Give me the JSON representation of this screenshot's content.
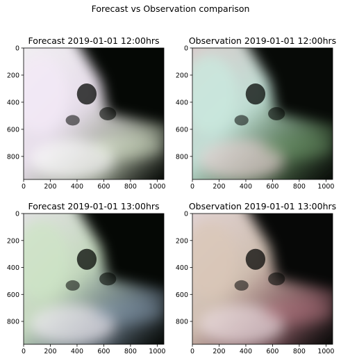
{
  "figure": {
    "suptitle": "Forecast vs Observation comparison"
  },
  "chart_data": [
    {
      "type": "heatmap",
      "title": "Forecast 2019-01-01 12:00hrs",
      "xlabel": "",
      "ylabel": "",
      "xlim": [
        0,
        1050
      ],
      "ylim": [
        970,
        0
      ],
      "xticks": [
        0,
        200,
        400,
        600,
        800,
        1000
      ],
      "yticks": [
        0,
        200,
        400,
        600,
        800
      ],
      "grid": false,
      "image": "false-color satellite composite",
      "colors": {
        "glow_a": "#ffffff",
        "glow_b": "#f2e8f6",
        "tint": "#e8f3da",
        "dark": "#050805"
      }
    },
    {
      "type": "heatmap",
      "title": "Observation 2019-01-01 12:00hrs",
      "xlabel": "",
      "ylabel": "",
      "xlim": [
        0,
        1050
      ],
      "ylim": [
        970,
        0
      ],
      "xticks": [
        0,
        200,
        400,
        600,
        800,
        1000
      ],
      "yticks": [
        0,
        200,
        400,
        600,
        800
      ],
      "grid": false,
      "image": "false-color satellite composite",
      "colors": {
        "glow_a": "#e9d2d4",
        "glow_b": "#c9e9df",
        "tint": "#6f9a6b",
        "dark": "#070a07"
      }
    },
    {
      "type": "heatmap",
      "title": "Forecast 2019-01-01 13:00hrs",
      "xlabel": "",
      "ylabel": "",
      "xlim": [
        0,
        1050
      ],
      "ylim": [
        970,
        0
      ],
      "xticks": [
        0,
        200,
        400,
        600,
        800,
        1000
      ],
      "yticks": [
        0,
        200,
        400,
        600,
        800
      ],
      "grid": false,
      "image": "false-color satellite composite",
      "colors": {
        "glow_a": "#f4eef7",
        "glow_b": "#cde3c6",
        "tint": "#8a9fb4",
        "dark": "#050805"
      }
    },
    {
      "type": "heatmap",
      "title": "Observation 2019-01-01 13:00hrs",
      "xlabel": "",
      "ylabel": "",
      "xlim": [
        0,
        1050
      ],
      "ylim": [
        970,
        0
      ],
      "xticks": [
        0,
        200,
        400,
        600,
        800,
        1000
      ],
      "yticks": [
        0,
        200,
        400,
        600,
        800
      ],
      "grid": false,
      "image": "false-color satellite composite",
      "colors": {
        "glow_a": "#f0e2e6",
        "glow_b": "#d9c7b8",
        "tint": "#bb7a86",
        "dark": "#070807"
      }
    }
  ]
}
